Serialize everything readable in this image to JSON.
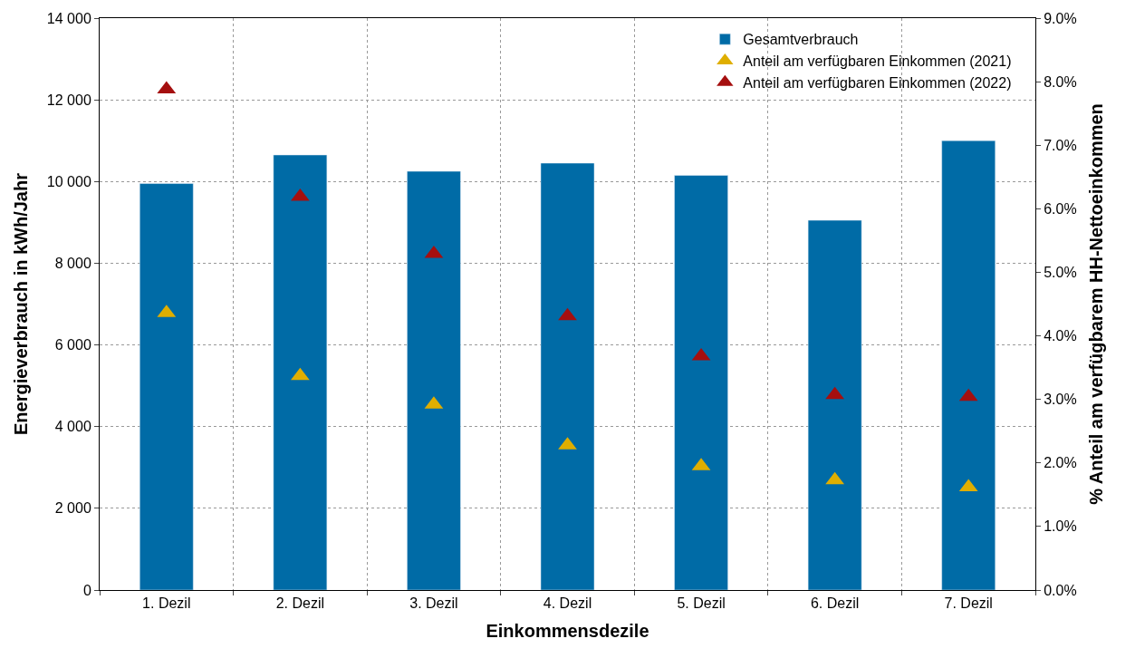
{
  "chart_data": {
    "type": "bar",
    "xlabel": "Einkommensdezile",
    "ylabel": "Energieverbrauch in kWh/Jahr",
    "y2label": "% Anteil am verfügbarem HH-Nettoeinkommen",
    "categories": [
      "1. Dezil",
      "2. Dezil",
      "3. Dezil",
      "4. Dezil",
      "5. Dezil",
      "6. Dezil",
      "7. Dezil"
    ],
    "series": [
      {
        "name": "Gesamtverbrauch",
        "color": "#006ba6",
        "values": [
          9950,
          10650,
          10250,
          10450,
          10150,
          9050,
          11000
        ]
      },
      {
        "name": "Anteil am verfügbaren Einkommen (2021)",
        "type": "scatter",
        "axis": "y2",
        "marker": "triangle",
        "color": "#dfae00",
        "values": [
          4.36,
          3.37,
          2.92,
          2.28,
          1.95,
          1.73,
          1.62
        ]
      },
      {
        "name": "Anteil am verfügbaren Einkommen (2022)",
        "type": "scatter",
        "axis": "y2",
        "marker": "triangle",
        "color": "#a50f0f",
        "values": [
          7.88,
          6.19,
          5.29,
          4.31,
          3.68,
          3.07,
          3.04
        ]
      }
    ],
    "ylim": [
      0,
      14000
    ],
    "yticks": [
      0,
      {
        "value": 2000,
        "label": "2 000"
      },
      {
        "value": 4000,
        "label": "4 000"
      },
      {
        "value": 6000,
        "label": "6 000"
      },
      {
        "value": 8000,
        "label": "8 000"
      },
      {
        "value": 10000,
        "label": "10 000"
      },
      {
        "value": 12000,
        "label": "12 000"
      },
      {
        "value": 14000,
        "label": "14 000"
      }
    ],
    "y2lim": [
      0,
      9
    ],
    "y2ticks": [
      {
        "value": 0,
        "label": "0.0%"
      },
      {
        "value": 1,
        "label": "1.0%"
      },
      {
        "value": 2,
        "label": "2.0%"
      },
      {
        "value": 3,
        "label": "3.0%"
      },
      {
        "value": 4,
        "label": "4.0%"
      },
      {
        "value": 5,
        "label": "5.0%"
      },
      {
        "value": 6,
        "label": "6.0%"
      },
      {
        "value": 7,
        "label": "7.0%"
      },
      {
        "value": 8,
        "label": "8.0%"
      },
      {
        "value": 9,
        "label": "9.0%"
      }
    ],
    "grid": true,
    "legend": "top right"
  }
}
